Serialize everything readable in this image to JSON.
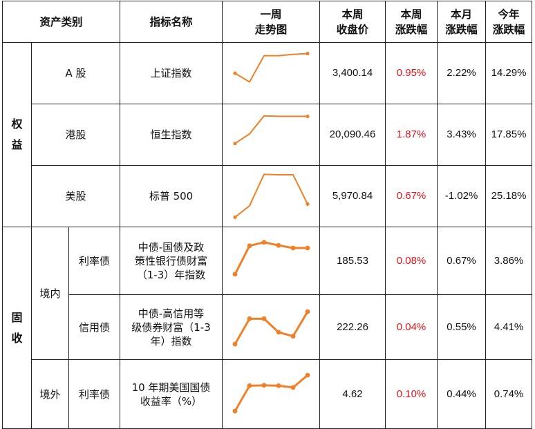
{
  "headers": {
    "asset_class": "资产类别",
    "index_name": "指标名称",
    "trend": [
      "一周",
      "走势图"
    ],
    "close": [
      "本周",
      "收盘价"
    ],
    "week_chg": [
      "本周",
      "涨跌幅"
    ],
    "month_chg": [
      "本月",
      "涨跌幅"
    ],
    "ytd_chg": [
      "今年",
      "涨跌幅"
    ]
  },
  "groups": {
    "equity": [
      "权",
      "益"
    ],
    "fixed_income": [
      "固",
      "收"
    ],
    "domestic": "境内",
    "overseas": "境外"
  },
  "colors": {
    "line": "#f07f25",
    "up": "#e8121b"
  },
  "rows": [
    {
      "sub": "A 股",
      "name": [
        "上证指数"
      ],
      "close": "3,400.14",
      "week": "0.95%",
      "month": "2.22%",
      "ytd": "14.29%"
    },
    {
      "sub": "港股",
      "name": [
        "恒生指数"
      ],
      "close": "20,090.46",
      "week": "1.87%",
      "month": "3.43%",
      "ytd": "17.85%"
    },
    {
      "sub": "美股",
      "name": [
        "标普 500"
      ],
      "close": "5,970.84",
      "week": "0.67%",
      "month": "-1.02%",
      "ytd": "25.18%"
    },
    {
      "sub": "利率债",
      "name": [
        "中债-国债及政",
        "策性银行债财富",
        "（1-3）年指数"
      ],
      "close": "185.53",
      "week": "0.08%",
      "month": "0.67%",
      "ytd": "3.86%"
    },
    {
      "sub": "信用债",
      "name": [
        "中债-高信用等",
        "级债券财富（1-3",
        "年）指数"
      ],
      "close": "222.26",
      "week": "0.04%",
      "month": "0.55%",
      "ytd": "4.41%"
    },
    {
      "sub": "利率债",
      "name": [
        "10 年期美国国债",
        "收益率（%）"
      ],
      "close": "4.62",
      "week": "0.10%",
      "month": "0.44%",
      "ytd": "0.74%"
    }
  ],
  "chart_data": [
    {
      "type": "line",
      "series": [
        {
          "values": [
            60,
            40,
            100,
            100,
            103,
            105
          ]
        }
      ],
      "markers": "first-last"
    },
    {
      "type": "line",
      "series": [
        {
          "values": [
            40,
            62,
            103,
            102,
            102,
            102
          ]
        }
      ],
      "markers": "first-last"
    },
    {
      "type": "line",
      "series": [
        {
          "values": [
            12,
            38,
            110,
            109,
            109,
            42
          ]
        }
      ],
      "markers": "first-last"
    },
    {
      "type": "line",
      "series": [
        {
          "values": [
            30,
            95,
            103,
            96,
            90,
            90
          ]
        }
      ],
      "markers": "all"
    },
    {
      "type": "line",
      "series": [
        {
          "values": [
            22,
            80,
            80,
            49,
            40,
            96
          ]
        }
      ],
      "markers": "all"
    },
    {
      "type": "line",
      "series": [
        {
          "values": [
            22,
            80,
            81,
            80,
            76,
            104
          ]
        }
      ],
      "markers": "all"
    }
  ]
}
